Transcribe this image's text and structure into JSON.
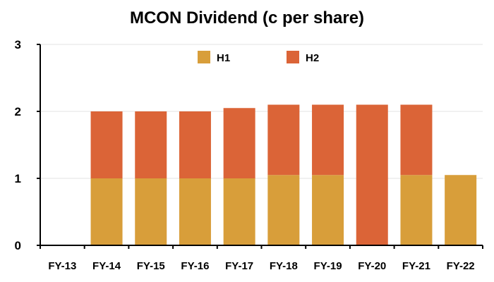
{
  "chart_data": {
    "type": "bar",
    "stacked": true,
    "title": "MCON Dividend (c per share)",
    "xlabel": "",
    "ylabel": "",
    "categories": [
      "FY-13",
      "FY-14",
      "FY-15",
      "FY-16",
      "FY-17",
      "FY-18",
      "FY-19",
      "FY-20",
      "FY-21",
      "FY-22"
    ],
    "series": [
      {
        "name": "H1",
        "color": "#D89E3A",
        "values": [
          0,
          1.0,
          1.0,
          1.0,
          1.0,
          1.05,
          1.05,
          0,
          1.05,
          1.05
        ]
      },
      {
        "name": "H2",
        "color": "#DB6437",
        "values": [
          0,
          1.0,
          1.0,
          1.0,
          1.05,
          1.05,
          1.05,
          2.1,
          1.05,
          0
        ]
      }
    ],
    "ylim": [
      0,
      3
    ],
    "yticks": [
      0,
      1,
      2,
      3
    ],
    "grid": true,
    "legend_position": "top"
  }
}
